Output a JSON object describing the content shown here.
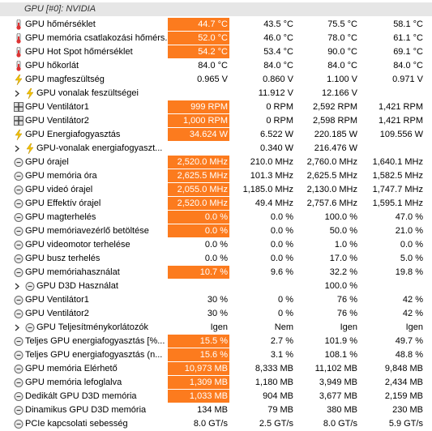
{
  "header": {
    "title": "GPU [#0]: NVIDIA"
  },
  "rows": [
    {
      "label": "GPU hőmérséklet",
      "current": "44.7 °C",
      "min": "43.5 °C",
      "max": "75.5 °C",
      "avg": "58.1 °C",
      "highlight": true,
      "icon": "temp"
    },
    {
      "label": "GPU memória csatlakozási hőmérs...",
      "current": "52.0 °C",
      "min": "46.0 °C",
      "max": "78.0 °C",
      "avg": "61.1 °C",
      "highlight": true,
      "icon": "temp"
    },
    {
      "label": "GPU Hot Spot hőmérséklet",
      "current": "54.2 °C",
      "min": "53.4 °C",
      "max": "90.0 °C",
      "avg": "69.1 °C",
      "highlight": true,
      "icon": "temp"
    },
    {
      "label": "GPU hőkorlát",
      "current": "84.0 °C",
      "min": "84.0 °C",
      "max": "84.0 °C",
      "avg": "84.0 °C",
      "highlight": false,
      "icon": "temp"
    },
    {
      "label": "GPU magfeszültség",
      "current": "0.965 V",
      "min": "0.860 V",
      "max": "1.100 V",
      "avg": "0.971 V",
      "highlight": false,
      "icon": "volt"
    },
    {
      "label": "GPU vonalak feszültségei",
      "min": "11.912 V",
      "max": "12.166 V",
      "highlight": false,
      "icon": "volt",
      "expandable": true
    },
    {
      "label": "GPU Ventilátor1",
      "current": "999 RPM",
      "min": "0 RPM",
      "max": "2,592 RPM",
      "avg": "1,421 RPM",
      "highlight": true,
      "icon": "fan"
    },
    {
      "label": "GPU Ventilátor2",
      "current": "1,000 RPM",
      "min": "0 RPM",
      "max": "2,598 RPM",
      "avg": "1,421 RPM",
      "highlight": true,
      "icon": "fan"
    },
    {
      "label": "GPU Energiafogyasztás",
      "current": "34.624 W",
      "min": "6.522 W",
      "max": "220.185 W",
      "avg": "109.556 W",
      "highlight": true,
      "icon": "volt"
    },
    {
      "label": "GPU-vonalak energiafogyaszt...",
      "min": "0.340 W",
      "max": "216.476 W",
      "highlight": false,
      "icon": "volt",
      "expandable": true
    },
    {
      "label": "GPU órajel",
      "current": "2,520.0 MHz",
      "min": "210.0 MHz",
      "max": "2,760.0 MHz",
      "avg": "1,640.1 MHz",
      "highlight": true,
      "icon": "clock"
    },
    {
      "label": "GPU memória óra",
      "current": "2,625.5 MHz",
      "min": "101.3 MHz",
      "max": "2,625.5 MHz",
      "avg": "1,582.5 MHz",
      "highlight": true,
      "icon": "clock"
    },
    {
      "label": "GPU videó órajel",
      "current": "2,055.0 MHz",
      "min": "1,185.0 MHz",
      "max": "2,130.0 MHz",
      "avg": "1,747.7 MHz",
      "highlight": true,
      "icon": "clock"
    },
    {
      "label": "GPU Effektív órajel",
      "current": "2,520.0 MHz",
      "min": "49.4 MHz",
      "max": "2,757.6 MHz",
      "avg": "1,595.1 MHz",
      "highlight": true,
      "icon": "clock"
    },
    {
      "label": "GPU magterhelés",
      "current": "0.0 %",
      "min": "0.0 %",
      "max": "100.0 %",
      "avg": "47.0 %",
      "highlight": true,
      "icon": "clock"
    },
    {
      "label": "GPU memóriavezérlő betöltése",
      "current": "0.0 %",
      "min": "0.0 %",
      "max": "50.0 %",
      "avg": "21.0 %",
      "highlight": true,
      "icon": "clock"
    },
    {
      "label": "GPU videomotor terhelése",
      "current": "0.0 %",
      "min": "0.0 %",
      "max": "1.0 %",
      "avg": "0.0 %",
      "highlight": false,
      "icon": "clock"
    },
    {
      "label": "GPU busz terhelés",
      "current": "0.0 %",
      "min": "0.0 %",
      "max": "17.0 %",
      "avg": "5.0 %",
      "highlight": false,
      "icon": "clock"
    },
    {
      "label": "GPU memóriahasználat",
      "current": "10.7 %",
      "min": "9.6 %",
      "max": "32.2 %",
      "avg": "19.8 %",
      "highlight": true,
      "icon": "clock"
    },
    {
      "label": "GPU D3D Használat",
      "max": "100.0 %",
      "highlight": false,
      "icon": "clock",
      "expandable": true
    },
    {
      "label": "GPU Ventilátor1",
      "current": "30 %",
      "min": "0 %",
      "max": "76 %",
      "avg": "42 %",
      "highlight": false,
      "icon": "clock"
    },
    {
      "label": "GPU Ventilátor2",
      "current": "30 %",
      "min": "0 %",
      "max": "76 %",
      "avg": "42 %",
      "highlight": false,
      "icon": "clock"
    },
    {
      "label": "GPU Teljesítménykorlátozók",
      "current": "Igen",
      "min": "Nem",
      "max": "Igen",
      "avg": "Igen",
      "highlight": false,
      "icon": "clock",
      "expandable": true
    },
    {
      "label": "Teljes GPU energiafogyasztás [%...",
      "current": "15.5 %",
      "min": "2.7 %",
      "max": "101.9 %",
      "avg": "49.7 %",
      "highlight": true,
      "icon": "clock"
    },
    {
      "label": "Teljes GPU energiafogyasztás (n...",
      "current": "15.6 %",
      "min": "3.1 %",
      "max": "108.1 %",
      "avg": "48.8 %",
      "highlight": true,
      "icon": "clock"
    },
    {
      "label": "GPU memória Elérhető",
      "current": "10,973 MB",
      "min": "8,333 MB",
      "max": "11,102 MB",
      "avg": "9,848 MB",
      "highlight": true,
      "icon": "clock"
    },
    {
      "label": "GPU memória lefoglalva",
      "current": "1,309 MB",
      "min": "1,180 MB",
      "max": "3,949 MB",
      "avg": "2,434 MB",
      "highlight": true,
      "icon": "clock"
    },
    {
      "label": "Dedikált GPU D3D memória",
      "current": "1,033 MB",
      "min": "904 MB",
      "max": "3,677 MB",
      "avg": "2,159 MB",
      "highlight": true,
      "icon": "clock"
    },
    {
      "label": "Dinamikus GPU D3D memória",
      "current": "134 MB",
      "min": "79 MB",
      "max": "380 MB",
      "avg": "230 MB",
      "highlight": false,
      "icon": "clock"
    },
    {
      "label": "PCIe kapcsolati sebesség",
      "current": "8.0 GT/s",
      "min": "2.5 GT/s",
      "max": "8.0 GT/s",
      "avg": "5.9 GT/s",
      "highlight": false,
      "icon": "clock"
    }
  ]
}
